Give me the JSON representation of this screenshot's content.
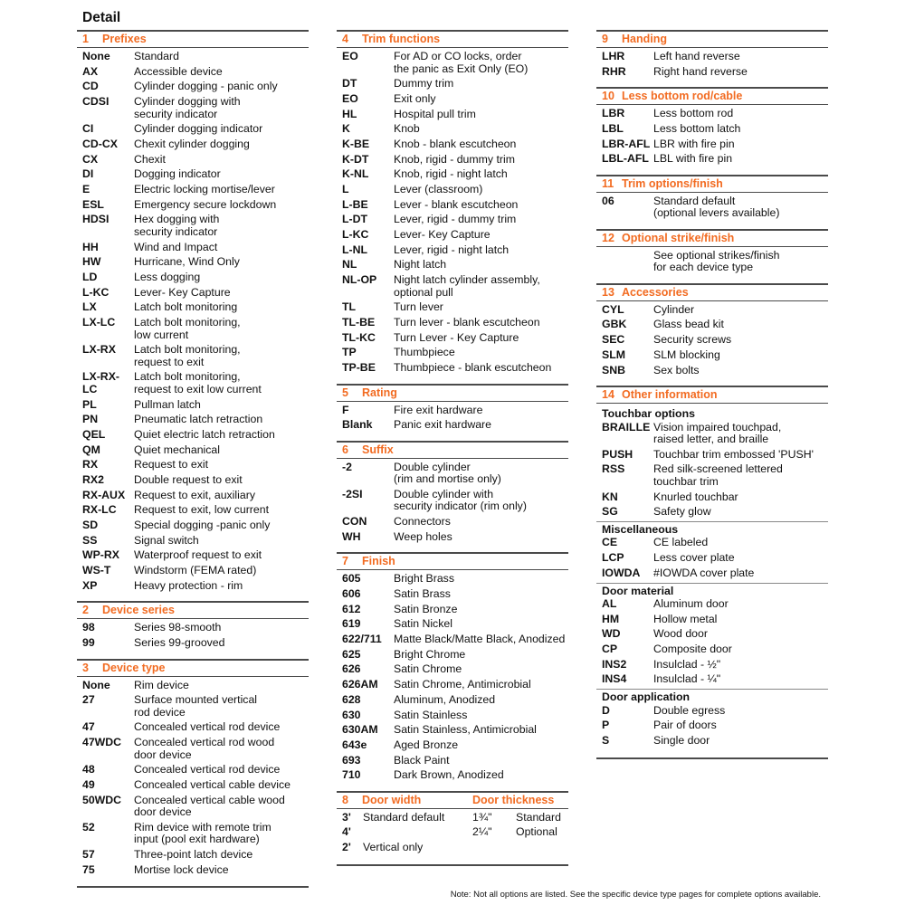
{
  "title": "Detail",
  "note": "Note: Not all options are listed. See the specific device type pages for complete options available.",
  "colors": {
    "accent": "#f26b21",
    "rule": "#4a4a4a"
  },
  "columns": [
    [
      {
        "num": "1",
        "heading": "Prefixes",
        "items": [
          [
            "None",
            "Standard"
          ],
          [
            "AX",
            "Accessible device"
          ],
          [
            "CD",
            "Cylinder dogging - panic only"
          ],
          [
            "CDSI",
            "Cylinder dogging with\nsecurity indicator"
          ],
          [
            "CI",
            "Cylinder dogging indicator"
          ],
          [
            "CD-CX",
            "Chexit cylinder dogging"
          ],
          [
            "CX",
            "Chexit"
          ],
          [
            "DI",
            "Dogging indicator"
          ],
          [
            "E",
            "Electric locking mortise/lever"
          ],
          [
            "ESL",
            "Emergency secure lockdown"
          ],
          [
            "HDSI",
            "Hex dogging with\nsecurity indicator"
          ],
          [
            "HH",
            "Wind and Impact"
          ],
          [
            "HW",
            "Hurricane, Wind Only"
          ],
          [
            "LD",
            "Less dogging"
          ],
          [
            "L-KC",
            "Lever- Key Capture"
          ],
          [
            "LX",
            "Latch bolt monitoring"
          ],
          [
            "LX-LC",
            "Latch bolt monitoring,\nlow current"
          ],
          [
            "LX-RX",
            "Latch bolt monitoring,\nrequest to exit"
          ],
          [
            "LX-RX-\nLC",
            "Latch bolt monitoring,\nrequest to exit low current"
          ],
          [
            "PL",
            "Pullman latch"
          ],
          [
            "PN",
            "Pneumatic latch retraction"
          ],
          [
            "QEL",
            "Quiet electric latch retraction"
          ],
          [
            "QM",
            "Quiet mechanical"
          ],
          [
            "RX",
            "Request to exit"
          ],
          [
            "RX2",
            "Double request to exit"
          ],
          [
            "RX-AUX",
            "Request to exit, auxiliary"
          ],
          [
            "RX-LC",
            "Request to exit, low current"
          ],
          [
            "SD",
            "Special dogging -panic only"
          ],
          [
            "SS",
            "Signal switch"
          ],
          [
            "WP-RX",
            "Waterproof request to exit"
          ],
          [
            "WS-T",
            "Windstorm (FEMA rated)"
          ],
          [
            "XP",
            "Heavy protection - rim"
          ]
        ]
      },
      {
        "num": "2",
        "heading": "Device series",
        "items": [
          [
            "98",
            "Series 98-smooth"
          ],
          [
            "99",
            "Series 99-grooved"
          ]
        ]
      },
      {
        "num": "3",
        "heading": "Device type",
        "last": true,
        "items": [
          [
            "None",
            "Rim device"
          ],
          [
            "27",
            "Surface mounted vertical\nrod device"
          ],
          [
            "47",
            "Concealed vertical rod device"
          ],
          [
            "47WDC",
            "Concealed vertical rod wood\ndoor device"
          ],
          [
            "48",
            "Concealed vertical rod device"
          ],
          [
            "49",
            "Concealed vertical cable device"
          ],
          [
            "50WDC",
            "Concealed vertical cable wood\ndoor device"
          ],
          [
            "52",
            "Rim device with remote trim\ninput (pool exit hardware)"
          ],
          [
            "57",
            "Three-point latch device"
          ],
          [
            "75",
            "Mortise lock device"
          ]
        ]
      }
    ],
    [
      {
        "num": "4",
        "heading": "Trim functions",
        "items": [
          [
            "EO",
            "For AD or CO locks, order\nthe panic as Exit Only (EO)"
          ],
          [
            "DT",
            "Dummy trim"
          ],
          [
            "EO",
            "Exit only"
          ],
          [
            "HL",
            "Hospital pull trim"
          ],
          [
            "K",
            "Knob"
          ],
          [
            "K-BE",
            "Knob - blank escutcheon"
          ],
          [
            "K-DT",
            "Knob, rigid - dummy trim"
          ],
          [
            "K-NL",
            "Knob, rigid - night latch"
          ],
          [
            "L",
            "Lever (classroom)"
          ],
          [
            "L-BE",
            "Lever - blank escutcheon"
          ],
          [
            "L-DT",
            "Lever, rigid - dummy trim"
          ],
          [
            "L-KC",
            "Lever- Key Capture"
          ],
          [
            "L-NL",
            "Lever, rigid - night latch"
          ],
          [
            "NL",
            "Night latch"
          ],
          [
            "NL-OP",
            "Night latch cylinder assembly,\noptional pull"
          ],
          [
            "TL",
            "Turn lever"
          ],
          [
            "TL-BE",
            "Turn lever - blank escutcheon"
          ],
          [
            "TL-KC",
            "Turn Lever - Key Capture"
          ],
          [
            "TP",
            "Thumbpiece"
          ],
          [
            "TP-BE",
            "Thumbpiece - blank escutcheon"
          ]
        ]
      },
      {
        "num": "5",
        "heading": "Rating",
        "items": [
          [
            "F",
            "Fire exit hardware"
          ],
          [
            "Blank",
            "Panic exit hardware"
          ]
        ]
      },
      {
        "num": "6",
        "heading": "Suffix",
        "items": [
          [
            "-2",
            "Double cylinder\n(rim and mortise only)"
          ],
          [
            "-2SI",
            "Double cylinder with\nsecurity indicator (rim only)"
          ],
          [
            "CON",
            "Connectors"
          ],
          [
            "WH",
            "Weep holes"
          ]
        ]
      },
      {
        "num": "7",
        "heading": "Finish",
        "items": [
          [
            "605",
            "Bright Brass"
          ],
          [
            "606",
            "Satin Brass"
          ],
          [
            "612",
            "Satin Bronze"
          ],
          [
            "619",
            "Satin Nickel"
          ],
          [
            "622/711",
            "Matte Black/Matte Black, Anodized"
          ],
          [
            "625",
            "Bright Chrome"
          ],
          [
            "626",
            "Satin Chrome"
          ],
          [
            "626AM",
            "Satin Chrome, Antimicrobial"
          ],
          [
            "628",
            "Aluminum, Anodized"
          ],
          [
            "630",
            "Satin Stainless"
          ],
          [
            "630AM",
            "Satin Stainless, Antimicrobial"
          ],
          [
            "643e",
            "Aged Bronze"
          ],
          [
            "693",
            "Black Paint"
          ],
          [
            "710",
            "Dark Brown, Anodized"
          ]
        ]
      },
      {
        "num": "8",
        "heading": "Door width",
        "heading2": "Door thickness",
        "type": "width",
        "last": true,
        "rows": [
          [
            "3'",
            "Standard default",
            "1¾\"",
            "Standard"
          ],
          [
            "4'",
            "",
            "2¼\"",
            "Optional"
          ],
          [
            "2'",
            "Vertical only",
            "",
            ""
          ]
        ]
      }
    ],
    [
      {
        "num": "9",
        "heading": "Handing",
        "items": [
          [
            "LHR",
            "Left hand reverse"
          ],
          [
            "RHR",
            "Right hand reverse"
          ]
        ]
      },
      {
        "num": "10",
        "heading": "Less bottom rod/cable",
        "items": [
          [
            "LBR",
            "Less bottom rod"
          ],
          [
            "LBL",
            "Less bottom latch"
          ],
          [
            "LBR-AFL",
            "LBR with fire pin"
          ],
          [
            "LBL-AFL",
            "LBL with fire pin"
          ]
        ]
      },
      {
        "num": "11",
        "heading": "Trim options/finish",
        "items": [
          [
            "06",
            "Standard default\n(optional levers available)"
          ]
        ]
      },
      {
        "num": "12",
        "heading": "Optional strike/finish",
        "items": [
          [
            "",
            "See optional strikes/finish\nfor each device type"
          ]
        ]
      },
      {
        "num": "13",
        "heading": "Accessories",
        "items": [
          [
            "CYL",
            "Cylinder"
          ],
          [
            "GBK",
            "Glass bead kit"
          ],
          [
            "SEC",
            "Security screws"
          ],
          [
            "SLM",
            "SLM blocking"
          ],
          [
            "SNB",
            "Sex bolts"
          ]
        ]
      },
      {
        "num": "14",
        "heading": "Other information",
        "last": true,
        "groups": [
          {
            "label": "Touchbar options",
            "items": [
              [
                "BRAILLE",
                "Vision impaired touchpad,\nraised letter, and braille"
              ],
              [
                "PUSH",
                "Touchbar trim embossed 'PUSH'"
              ],
              [
                "RSS",
                "Red silk-screened lettered\ntouchbar trim"
              ],
              [
                "KN",
                "Knurled touchbar"
              ],
              [
                "SG",
                "Safety glow"
              ]
            ]
          },
          {
            "label": "Miscellaneous",
            "items": [
              [
                "CE",
                "CE labeled"
              ],
              [
                "LCP",
                "Less cover plate"
              ],
              [
                "IOWDA",
                "#IOWDA cover plate"
              ]
            ]
          },
          {
            "label": "Door material",
            "items": [
              [
                "AL",
                "Aluminum door"
              ],
              [
                "HM",
                "Hollow metal"
              ],
              [
                "WD",
                "Wood door"
              ],
              [
                "CP",
                "Composite door"
              ],
              [
                "INS2",
                "Insulclad - ½\""
              ],
              [
                "INS4",
                "Insulclad - ¼\""
              ]
            ]
          },
          {
            "label": "Door application",
            "items": [
              [
                "D",
                "Double egress"
              ],
              [
                "P",
                "Pair of doors"
              ],
              [
                "S",
                "Single door"
              ]
            ]
          }
        ]
      }
    ]
  ]
}
